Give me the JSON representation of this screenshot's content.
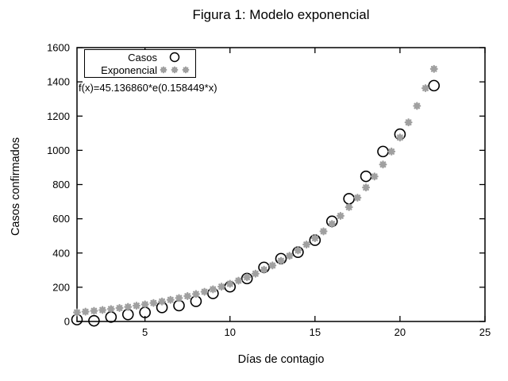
{
  "window": {
    "background": "#ffffff"
  },
  "colors": {
    "axis": "#000000",
    "casos_marker": "#000000",
    "exponencial_marker": "#a0a0a0",
    "text": "#000000",
    "legend_border": "#000000"
  },
  "chart_data": {
    "type": "scatter",
    "title": "Figura 1: Modelo exponencial",
    "xlabel": "Días de contagio",
    "ylabel": "Casos confirmados",
    "xlim": [
      1,
      25
    ],
    "ylim": [
      0,
      1600
    ],
    "xticks": [
      5,
      10,
      15,
      20,
      25
    ],
    "yticks": [
      0,
      200,
      400,
      600,
      800,
      1000,
      1200,
      1400,
      1600
    ],
    "grid": false,
    "legend_position": "top-left-inside",
    "annotation": "f(x)=45.136860*e(0.158449*x)",
    "fit_params": {
      "a": 45.13686,
      "b": 0.158449
    },
    "series": [
      {
        "name": "Casos",
        "marker": "open-circle",
        "color": "#000000",
        "x": [
          1,
          2,
          3,
          4,
          5,
          6,
          7,
          8,
          9,
          10,
          11,
          12,
          13,
          14,
          15,
          16,
          17,
          18,
          19,
          20,
          22
        ],
        "y": [
          11,
          4,
          26,
          41,
          53,
          82,
          93,
          118,
          164,
          203,
          251,
          316,
          367,
          405,
          475,
          585,
          717,
          848,
          993,
          1094,
          1378
        ]
      },
      {
        "name": "Exponencial",
        "marker": "star",
        "color": "#a0a0a0",
        "x": [
          1,
          1.5,
          2,
          2.5,
          3,
          3.5,
          4,
          4.5,
          5,
          5.5,
          6,
          6.5,
          7,
          7.5,
          8,
          8.5,
          9,
          9.5,
          10,
          10.5,
          11,
          11.5,
          12,
          12.5,
          13,
          13.5,
          14,
          14.5,
          15,
          15.5,
          16,
          16.5,
          17,
          17.5,
          18,
          18.5,
          19,
          19.5,
          20,
          20.5,
          21,
          21.5,
          22
        ],
        "y": [
          52.9,
          57.2,
          62.0,
          67.1,
          72.6,
          78.6,
          85.1,
          92.1,
          99.7,
          107.9,
          116.8,
          126.5,
          136.9,
          148.2,
          160.4,
          173.6,
          187.9,
          203.4,
          220.2,
          238.4,
          258.0,
          279.3,
          302.4,
          327.3,
          354.3,
          383.5,
          415.2,
          449.4,
          486.5,
          526.6,
          570.0,
          617.1,
          668.0,
          723.1,
          782.7,
          847.2,
          917.1,
          992.8,
          1074.7,
          1163.3,
          1259.3,
          1363.1,
          1475.6
        ]
      }
    ]
  }
}
